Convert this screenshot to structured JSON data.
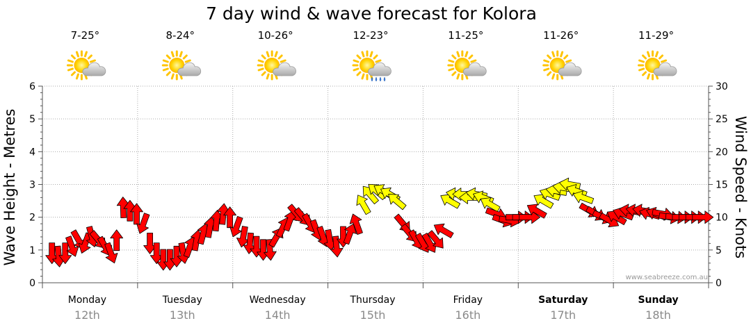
{
  "chart_data": {
    "type": "line",
    "title": "7 day wind & wave forecast for Kolora",
    "ylabel": "Wave Height - Metres",
    "y2label": "Wind Speed - Knots",
    "ylim": [
      0,
      6
    ],
    "y2lim": [
      0,
      30
    ],
    "yticks": [
      "0",
      "1",
      "2",
      "3",
      "4",
      "5",
      "6"
    ],
    "y2ticks": [
      "0",
      "5",
      "10",
      "15",
      "20",
      "25",
      "30"
    ],
    "credit": "www.seabreeze.com.au",
    "colors": {
      "strong": "#ff0000",
      "moderate": "#ffff00",
      "outline": "#000000",
      "grid": "#aaaaaa"
    },
    "days": [
      {
        "name": "Monday",
        "date": "12th",
        "temp": "7-25°",
        "weather_icon": "sun-cloud-icon",
        "bold": false
      },
      {
        "name": "Tuesday",
        "date": "13th",
        "temp": "8-24°",
        "weather_icon": "sun-cloud-icon",
        "bold": false
      },
      {
        "name": "Wednesday",
        "date": "14th",
        "temp": "10-26°",
        "weather_icon": "sun-cloud-icon",
        "bold": false
      },
      {
        "name": "Thursday",
        "date": "15th",
        "temp": "12-23°",
        "weather_icon": "sun-rain-icon",
        "bold": false
      },
      {
        "name": "Friday",
        "date": "16th",
        "temp": "11-25°",
        "weather_icon": "sun-cloud-icon",
        "bold": false
      },
      {
        "name": "Saturday",
        "date": "17th",
        "temp": "11-26°",
        "weather_icon": "sun-cloud-icon",
        "bold": true
      },
      {
        "name": "Sunday",
        "date": "18th",
        "temp": "11-29°",
        "weather_icon": "sun-cloud-icon",
        "bold": true
      }
    ],
    "wind_series": {
      "name": "Wind",
      "x_unit": "days from start of Monday",
      "dir_unit": "compass degrees the wind is blowing toward (0 = up/north)",
      "points": [
        {
          "x": 0.1,
          "knots": 4.5,
          "dir": 180
        },
        {
          "x": 0.17,
          "knots": 4.0,
          "dir": 175
        },
        {
          "x": 0.24,
          "knots": 4.5,
          "dir": 180
        },
        {
          "x": 0.31,
          "knots": 5.5,
          "dir": 160
        },
        {
          "x": 0.38,
          "knots": 6.5,
          "dir": 150
        },
        {
          "x": 0.45,
          "knots": 6.0,
          "dir": 200
        },
        {
          "x": 0.52,
          "knots": 7.0,
          "dir": 165
        },
        {
          "x": 0.59,
          "knots": 6.5,
          "dir": 140
        },
        {
          "x": 0.66,
          "knots": 5.5,
          "dir": 150
        },
        {
          "x": 0.72,
          "knots": 4.5,
          "dir": 160
        },
        {
          "x": 0.78,
          "knots": 6.5,
          "dir": 0
        },
        {
          "x": 0.85,
          "knots": 11.5,
          "dir": 358
        },
        {
          "x": 0.92,
          "knots": 11.0,
          "dir": 0
        },
        {
          "x": 0.99,
          "knots": 10.5,
          "dir": 0
        },
        {
          "x": 1.06,
          "knots": 9.0,
          "dir": 200
        },
        {
          "x": 1.13,
          "knots": 6.0,
          "dir": 180
        },
        {
          "x": 1.2,
          "knots": 4.5,
          "dir": 180
        },
        {
          "x": 1.27,
          "knots": 3.5,
          "dir": 180
        },
        {
          "x": 1.34,
          "knots": 3.5,
          "dir": 180
        },
        {
          "x": 1.41,
          "knots": 4.0,
          "dir": 180
        },
        {
          "x": 1.48,
          "knots": 4.5,
          "dir": 170
        },
        {
          "x": 1.55,
          "knots": 5.5,
          "dir": 20
        },
        {
          "x": 1.62,
          "knots": 6.5,
          "dir": 10
        },
        {
          "x": 1.69,
          "knots": 7.5,
          "dir": 15
        },
        {
          "x": 1.76,
          "knots": 8.5,
          "dir": 10
        },
        {
          "x": 1.83,
          "knots": 9.5,
          "dir": 5
        },
        {
          "x": 1.9,
          "knots": 10.5,
          "dir": 5
        },
        {
          "x": 1.97,
          "knots": 10.0,
          "dir": 0
        },
        {
          "x": 2.04,
          "knots": 8.5,
          "dir": 200
        },
        {
          "x": 2.11,
          "knots": 7.0,
          "dir": 190
        },
        {
          "x": 2.18,
          "knots": 6.0,
          "dir": 185
        },
        {
          "x": 2.25,
          "knots": 5.5,
          "dir": 180
        },
        {
          "x": 2.32,
          "knots": 5.0,
          "dir": 180
        },
        {
          "x": 2.39,
          "knots": 5.0,
          "dir": 175
        },
        {
          "x": 2.46,
          "knots": 7.0,
          "dir": 30
        },
        {
          "x": 2.53,
          "knots": 8.5,
          "dir": 25
        },
        {
          "x": 2.6,
          "knots": 9.5,
          "dir": 20
        },
        {
          "x": 2.67,
          "knots": 10.5,
          "dir": 140
        },
        {
          "x": 2.74,
          "knots": 10.0,
          "dir": 140
        },
        {
          "x": 2.81,
          "knots": 9.0,
          "dir": 150
        },
        {
          "x": 2.88,
          "knots": 8.0,
          "dir": 160
        },
        {
          "x": 2.95,
          "knots": 7.0,
          "dir": 160
        },
        {
          "x": 3.02,
          "knots": 6.5,
          "dir": 170
        },
        {
          "x": 3.09,
          "knots": 5.5,
          "dir": 175
        },
        {
          "x": 3.16,
          "knots": 7.0,
          "dir": 180
        },
        {
          "x": 3.23,
          "knots": 7.5,
          "dir": 20
        },
        {
          "x": 3.3,
          "knots": 9.0,
          "dir": 340
        },
        {
          "x": 3.37,
          "knots": 12.0,
          "dir": 330
        },
        {
          "x": 3.44,
          "knots": 13.5,
          "dir": 320
        },
        {
          "x": 3.51,
          "knots": 14.0,
          "dir": 310
        },
        {
          "x": 3.58,
          "knots": 14.0,
          "dir": 300
        },
        {
          "x": 3.65,
          "knots": 13.5,
          "dir": 300
        },
        {
          "x": 3.72,
          "knots": 12.5,
          "dir": 310
        },
        {
          "x": 3.79,
          "knots": 9.0,
          "dir": 140
        },
        {
          "x": 3.86,
          "knots": 7.5,
          "dir": 140
        },
        {
          "x": 3.93,
          "knots": 6.5,
          "dir": 150
        },
        {
          "x": 4.0,
          "knots": 6.0,
          "dir": 150
        },
        {
          "x": 4.07,
          "knots": 6.0,
          "dir": 150
        },
        {
          "x": 4.14,
          "knots": 6.5,
          "dir": 140
        },
        {
          "x": 4.21,
          "knots": 8.0,
          "dir": 300
        },
        {
          "x": 4.28,
          "knots": 12.5,
          "dir": 300
        },
        {
          "x": 4.35,
          "knots": 13.5,
          "dir": 280
        },
        {
          "x": 4.42,
          "knots": 13.5,
          "dir": 270
        },
        {
          "x": 4.49,
          "knots": 13.0,
          "dir": 270
        },
        {
          "x": 4.56,
          "knots": 13.5,
          "dir": 280
        },
        {
          "x": 4.63,
          "knots": 13.0,
          "dir": 290
        },
        {
          "x": 4.7,
          "knots": 12.0,
          "dir": 300
        },
        {
          "x": 4.77,
          "knots": 10.5,
          "dir": 110
        },
        {
          "x": 4.84,
          "knots": 9.5,
          "dir": 110
        },
        {
          "x": 4.91,
          "knots": 9.5,
          "dir": 100
        },
        {
          "x": 4.98,
          "knots": 10.0,
          "dir": 90
        },
        {
          "x": 5.05,
          "knots": 10.0,
          "dir": 90
        },
        {
          "x": 5.12,
          "knots": 10.0,
          "dir": 90
        },
        {
          "x": 5.19,
          "knots": 11.0,
          "dir": 300
        },
        {
          "x": 5.26,
          "knots": 12.5,
          "dir": 300
        },
        {
          "x": 5.33,
          "knots": 13.5,
          "dir": 290
        },
        {
          "x": 5.4,
          "knots": 14.0,
          "dir": 280
        },
        {
          "x": 5.47,
          "knots": 14.5,
          "dir": 280
        },
        {
          "x": 5.54,
          "knots": 15.0,
          "dir": 280
        },
        {
          "x": 5.61,
          "knots": 14.0,
          "dir": 290
        },
        {
          "x": 5.68,
          "knots": 13.0,
          "dir": 290
        },
        {
          "x": 5.75,
          "knots": 11.0,
          "dir": 120
        },
        {
          "x": 5.82,
          "knots": 10.5,
          "dir": 120
        },
        {
          "x": 5.89,
          "knots": 10.0,
          "dir": 115
        },
        {
          "x": 5.96,
          "knots": 9.5,
          "dir": 120
        },
        {
          "x": 6.03,
          "knots": 10.0,
          "dir": 300
        },
        {
          "x": 6.1,
          "knots": 10.5,
          "dir": 290
        },
        {
          "x": 6.17,
          "knots": 11.0,
          "dir": 280
        },
        {
          "x": 6.24,
          "knots": 11.0,
          "dir": 280
        },
        {
          "x": 6.31,
          "knots": 11.0,
          "dir": 280
        },
        {
          "x": 6.38,
          "knots": 10.5,
          "dir": 285
        },
        {
          "x": 6.45,
          "knots": 10.5,
          "dir": 290
        },
        {
          "x": 6.52,
          "knots": 10.5,
          "dir": 100
        },
        {
          "x": 6.59,
          "knots": 10.0,
          "dir": 100
        },
        {
          "x": 6.66,
          "knots": 10.0,
          "dir": 95
        },
        {
          "x": 6.73,
          "knots": 10.0,
          "dir": 90
        },
        {
          "x": 6.8,
          "knots": 10.0,
          "dir": 90
        },
        {
          "x": 6.87,
          "knots": 10.0,
          "dir": 90
        },
        {
          "x": 6.94,
          "knots": 10.0,
          "dir": 90
        }
      ]
    }
  }
}
